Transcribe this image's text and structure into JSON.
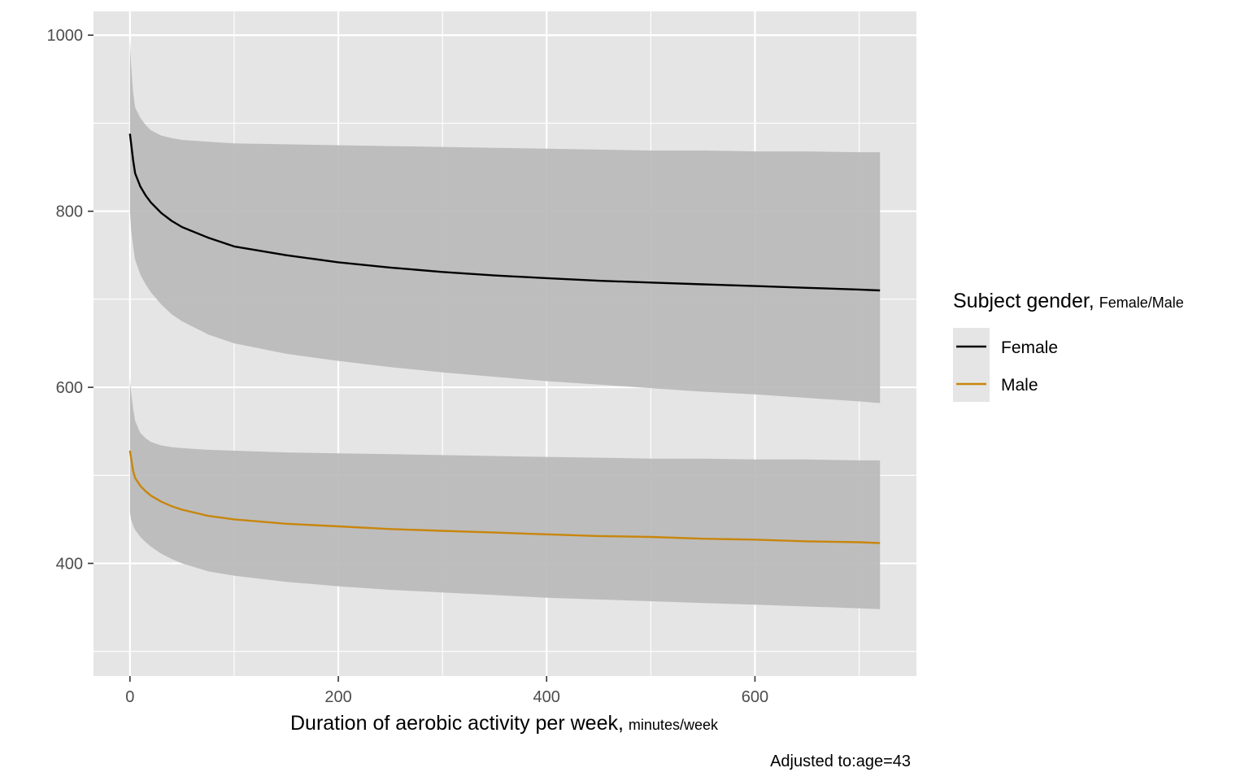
{
  "chart_data": {
    "type": "line",
    "xlabel": "Duration of aerobic activity per week,",
    "xlabel_unit": "minutes/week",
    "ylabel": "",
    "xlim": [
      -35,
      755
    ],
    "ylim": [
      272,
      1027
    ],
    "x_ticks": [
      0,
      200,
      400,
      600
    ],
    "y_ticks": [
      400,
      600,
      800,
      1000
    ],
    "x_minor": [
      100,
      300,
      500,
      700
    ],
    "y_minor": [
      300,
      500,
      700,
      900
    ],
    "grid": true,
    "legend_position": "right",
    "legend": {
      "title": "Subject gender,",
      "title_sub": "Female/Male"
    },
    "caption": "Adjusted to:age=43",
    "colors": {
      "panel": "#e5e5e5",
      "grid": "#ffffff",
      "ribbon": "#b8b8b8",
      "Female": "#000000",
      "Male": "#c8860d"
    },
    "x": [
      0,
      1,
      3,
      5,
      10,
      15,
      20,
      30,
      40,
      50,
      75,
      100,
      150,
      200,
      250,
      300,
      350,
      400,
      450,
      500,
      550,
      600,
      650,
      700,
      720
    ],
    "series": [
      {
        "name": "Female",
        "color": "#000000",
        "y": [
          888,
          878,
          858,
          843,
          828,
          818,
          810,
          798,
          789,
          782,
          770,
          760,
          750,
          742,
          736,
          731,
          727,
          724,
          721,
          719,
          717,
          715,
          713,
          711,
          710
        ],
        "lower": [
          800,
          780,
          760,
          745,
          728,
          717,
          708,
          694,
          683,
          675,
          660,
          650,
          638,
          630,
          623,
          617,
          612,
          607,
          603,
          599,
          595,
          592,
          588,
          584,
          582
        ],
        "upper": [
          995,
          968,
          935,
          918,
          906,
          898,
          892,
          886,
          883,
          881,
          879,
          877,
          876,
          875,
          874,
          873,
          872,
          871,
          870,
          869,
          869,
          868,
          868,
          867,
          867
        ]
      },
      {
        "name": "Male",
        "color": "#c8860d",
        "y": [
          528,
          520,
          505,
          497,
          488,
          482,
          477,
          470,
          465,
          461,
          454,
          450,
          445,
          442,
          439,
          437,
          435,
          433,
          431,
          430,
          428,
          427,
          425,
          424,
          423
        ],
        "lower": [
          458,
          450,
          443,
          438,
          430,
          424,
          419,
          411,
          405,
          400,
          391,
          386,
          379,
          374,
          370,
          367,
          364,
          361,
          359,
          357,
          355,
          353,
          351,
          349,
          348
        ],
        "upper": [
          610,
          595,
          576,
          562,
          548,
          542,
          538,
          534,
          532,
          531,
          529,
          528,
          526,
          525,
          524,
          523,
          522,
          521,
          520,
          519,
          519,
          518,
          518,
          517,
          517
        ]
      }
    ]
  }
}
